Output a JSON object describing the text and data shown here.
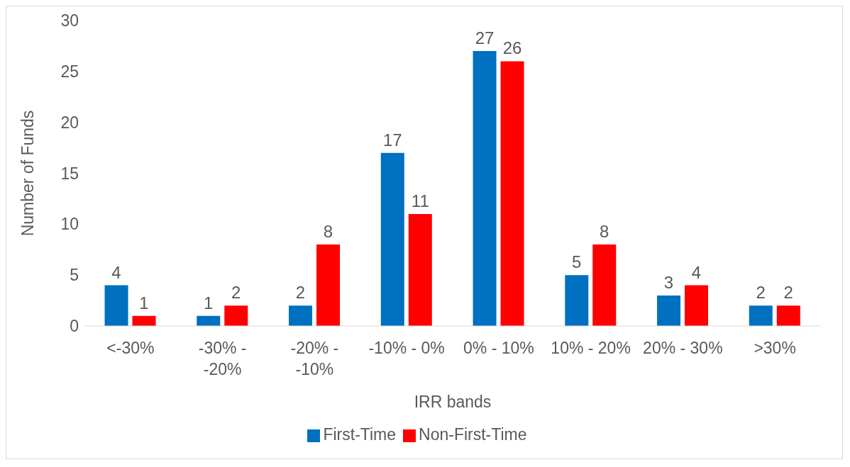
{
  "chart_data": {
    "type": "bar",
    "xlabel": "IRR bands",
    "ylabel": "Number of Funds",
    "categories": [
      "<-30%",
      "-30% - -20%",
      "-20% - -10%",
      "-10% - 0%",
      "0% - 10%",
      "10% - 20%",
      "20% - 30%",
      ">30%"
    ],
    "series": [
      {
        "name": "First-Time",
        "color": "#0070c0",
        "values": [
          4,
          1,
          2,
          17,
          27,
          5,
          3,
          2
        ]
      },
      {
        "name": "Non-First-Time",
        "color": "#ff0000",
        "values": [
          1,
          2,
          8,
          11,
          26,
          8,
          4,
          2
        ]
      }
    ],
    "ylim": [
      0,
      30
    ],
    "yticks": [
      0,
      5,
      10,
      15,
      20,
      25,
      30
    ],
    "grid": false,
    "legend": "bottom",
    "data_labels": true
  }
}
